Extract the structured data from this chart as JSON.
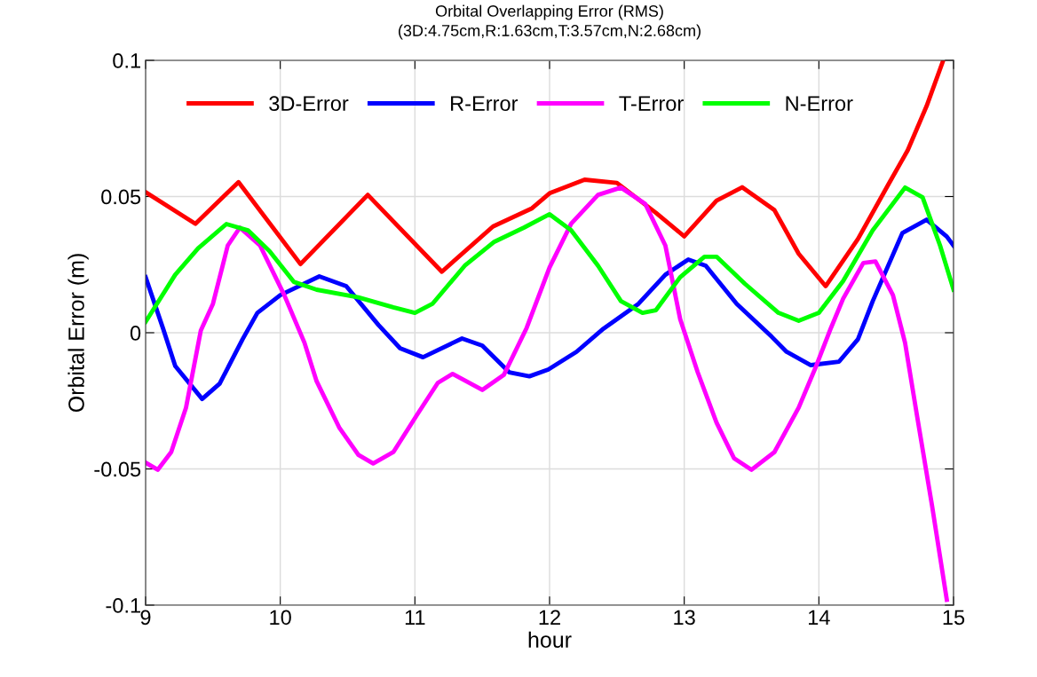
{
  "chart_data": {
    "type": "line",
    "title": "Orbital Overlapping Error (RMS)",
    "subtitle": "(3D:4.75cm,R:1.63cm,T:3.57cm,N:2.68cm)",
    "xlabel": "hour",
    "ylabel": "Orbital Error (m)",
    "xlim": [
      9,
      15
    ],
    "xticks": [
      9,
      10,
      11,
      12,
      13,
      14,
      15
    ],
    "ylim": [
      -0.1,
      0.1
    ],
    "yticks": [
      -0.1,
      -0.05,
      0,
      0.05,
      0.1
    ],
    "grid": true,
    "legend": "top left",
    "line_style": "solid",
    "marker": "none",
    "series": [
      {
        "name": "3D-Error",
        "color": "#ff0000",
        "x": [
          9.0,
          9.37,
          9.69,
          10.15,
          10.65,
          11.2,
          11.58,
          11.87,
          12.0,
          12.26,
          12.5,
          12.79,
          13.0,
          13.24,
          13.43,
          13.67,
          13.85,
          14.05,
          14.29,
          14.51,
          14.66,
          14.8,
          14.92
        ],
        "values": [
          0.0516,
          0.04,
          0.0553,
          0.0252,
          0.0506,
          0.0224,
          0.039,
          0.0457,
          0.0512,
          0.0562,
          0.055,
          0.044,
          0.0354,
          0.0485,
          0.0534,
          0.045,
          0.029,
          0.0171,
          0.0344,
          0.0539,
          0.067,
          0.0832,
          0.0995
        ]
      },
      {
        "name": "R-Error",
        "color": "#0000ff",
        "x": [
          9.0,
          9.13,
          9.22,
          9.42,
          9.55,
          9.72,
          9.83,
          10.0,
          10.29,
          10.49,
          10.73,
          10.89,
          11.06,
          11.35,
          11.5,
          11.7,
          11.85,
          11.99,
          12.2,
          12.4,
          12.66,
          12.86,
          13.03,
          13.16,
          13.39,
          13.65,
          13.76,
          13.94,
          14.15,
          14.29,
          14.4,
          14.62,
          14.8,
          14.95,
          15.0
        ],
        "values": [
          0.0204,
          0.0015,
          -0.0122,
          -0.0243,
          -0.0187,
          -0.0024,
          0.0073,
          0.0138,
          0.0207,
          0.0171,
          0.0028,
          -0.0057,
          -0.009,
          -0.0021,
          -0.0047,
          -0.0145,
          -0.016,
          -0.0135,
          -0.007,
          0.0015,
          0.0106,
          0.0213,
          0.0269,
          0.0246,
          0.0106,
          -0.0015,
          -0.007,
          -0.0119,
          -0.0106,
          -0.0024,
          0.0116,
          0.0366,
          0.0415,
          0.0353,
          0.032
        ]
      },
      {
        "name": "T-Error",
        "color": "#ff00ff",
        "x": [
          9.0,
          9.09,
          9.19,
          9.3,
          9.41,
          9.5,
          9.61,
          9.7,
          9.85,
          10.03,
          10.18,
          10.27,
          10.44,
          10.58,
          10.69,
          10.84,
          11.02,
          11.17,
          11.28,
          11.5,
          11.66,
          11.83,
          12.0,
          12.16,
          12.36,
          12.53,
          12.71,
          12.86,
          12.97,
          13.1,
          13.24,
          13.37,
          13.5,
          13.67,
          13.85,
          13.98,
          14.09,
          14.18,
          14.33,
          14.42,
          14.55,
          14.64,
          14.73,
          14.84,
          14.95
        ],
        "values": [
          -0.0477,
          -0.0503,
          -0.0438,
          -0.0275,
          0.0008,
          0.0106,
          0.032,
          0.0386,
          0.032,
          0.0138,
          -0.0037,
          -0.0178,
          -0.035,
          -0.0448,
          -0.048,
          -0.0438,
          -0.0298,
          -0.0184,
          -0.0151,
          -0.021,
          -0.0155,
          0.0018,
          0.024,
          0.04,
          0.0506,
          0.0533,
          0.0473,
          0.032,
          0.005,
          -0.0145,
          -0.033,
          -0.0461,
          -0.0503,
          -0.0438,
          -0.0275,
          -0.0122,
          0.0018,
          0.0125,
          0.0256,
          0.0262,
          0.0138,
          -0.0037,
          -0.0308,
          -0.0634,
          -0.098
        ]
      },
      {
        "name": "N-Error",
        "color": "#00ff00",
        "x": [
          9.0,
          9.22,
          9.39,
          9.6,
          9.76,
          9.92,
          10.1,
          10.27,
          10.58,
          10.84,
          11.0,
          11.13,
          11.37,
          11.59,
          11.81,
          12.0,
          12.16,
          12.36,
          12.53,
          12.69,
          12.79,
          12.97,
          13.15,
          13.24,
          13.45,
          13.7,
          13.85,
          14.0,
          14.18,
          14.4,
          14.64,
          14.77,
          14.9,
          15.0
        ],
        "values": [
          0.004,
          0.0213,
          0.031,
          0.0399,
          0.0376,
          0.03,
          0.0187,
          0.0158,
          0.013,
          0.0093,
          0.0073,
          0.0106,
          0.0246,
          0.0334,
          0.0386,
          0.0435,
          0.0376,
          0.0246,
          0.0116,
          0.0073,
          0.0083,
          0.0204,
          0.0279,
          0.0279,
          0.018,
          0.0073,
          0.0044,
          0.0073,
          0.019,
          0.0376,
          0.0533,
          0.0497,
          0.032,
          0.0158
        ]
      }
    ]
  }
}
